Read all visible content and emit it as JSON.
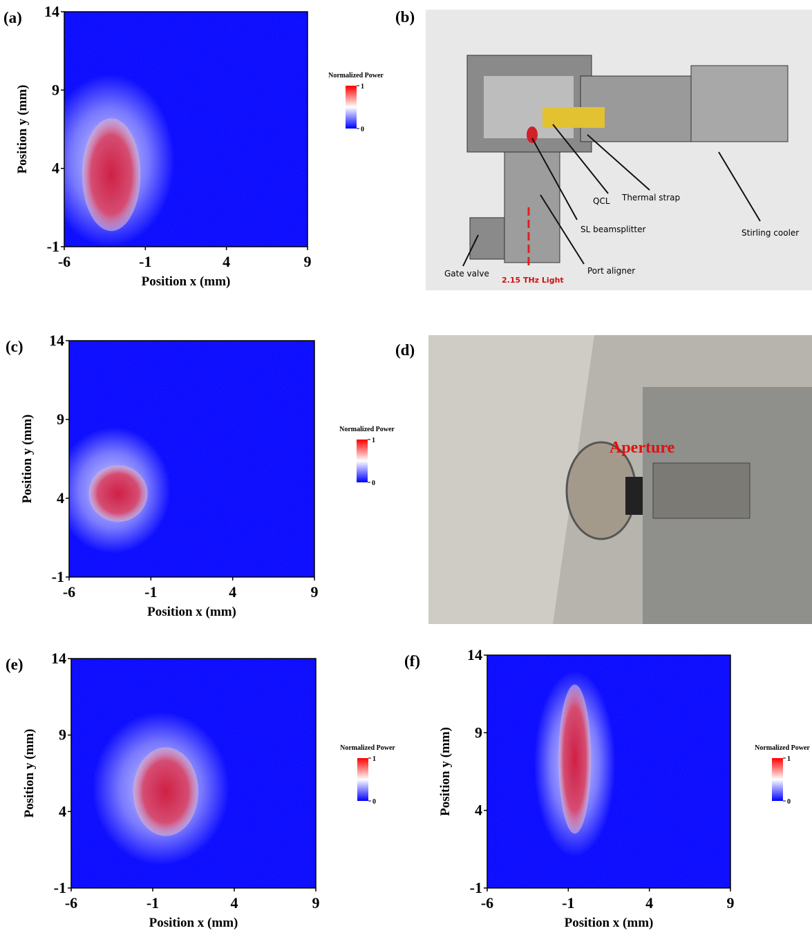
{
  "chart_data": [
    {
      "type": "heatmap",
      "label": "(a)",
      "xlabel": "Position x (mm)",
      "ylabel": "Position y (mm)",
      "xlim": [
        -6,
        9
      ],
      "ylim": [
        -1,
        14
      ],
      "xticks": [
        -6,
        -1,
        4,
        9
      ],
      "yticks": [
        -1,
        4,
        9,
        14
      ],
      "colorbar_title": "Normalized Power",
      "clim": [
        0,
        1
      ],
      "colormap": [
        "#0000ff",
        "#ffffff",
        "#ff0000"
      ]
    },
    {
      "type": "heatmap",
      "label": "(c)",
      "xlabel": "Position x (mm)",
      "ylabel": "Position y (mm)",
      "xlim": [
        -6,
        9
      ],
      "ylim": [
        -1,
        14
      ],
      "xticks": [
        -6,
        -1,
        4,
        9
      ],
      "yticks": [
        -1,
        4,
        9,
        14
      ],
      "colorbar_title": "Normalized Power",
      "clim": [
        0,
        1
      ],
      "colormap": [
        "#0000ff",
        "#ffffff",
        "#ff0000"
      ]
    },
    {
      "type": "heatmap",
      "label": "(e)",
      "xlabel": "Position x (mm)",
      "ylabel": "Position y (mm)",
      "xlim": [
        -6,
        9
      ],
      "ylim": [
        -1,
        14
      ],
      "xticks": [
        -6,
        -1,
        4,
        9
      ],
      "yticks": [
        -1,
        4,
        9,
        14
      ],
      "colorbar_title": "Normalized Power",
      "clim": [
        0,
        1
      ],
      "colormap": [
        "#0000ff",
        "#ffffff",
        "#ff0000"
      ]
    },
    {
      "type": "heatmap",
      "label": "(f)",
      "xlabel": "Position x (mm)",
      "ylabel": "Position y (mm)",
      "xlim": [
        -6,
        9
      ],
      "ylim": [
        -1,
        14
      ],
      "xticks": [
        -6,
        -1,
        4,
        9
      ],
      "yticks": [
        -1,
        4,
        9,
        14
      ],
      "colorbar_title": "Normalized Power",
      "clim": [
        0,
        1
      ],
      "colormap": [
        "#0000ff",
        "#ffffff",
        "#ff0000"
      ]
    }
  ],
  "diagram": {
    "label": "(b)",
    "annotations": [
      "QCL",
      "Thermal strap",
      "SL beamsplitter",
      "Stirling cooler",
      "Gate valve",
      "Port aligner",
      "2.15 THz Light"
    ]
  },
  "photo": {
    "label": "(d)",
    "annotation": "Aperture"
  }
}
